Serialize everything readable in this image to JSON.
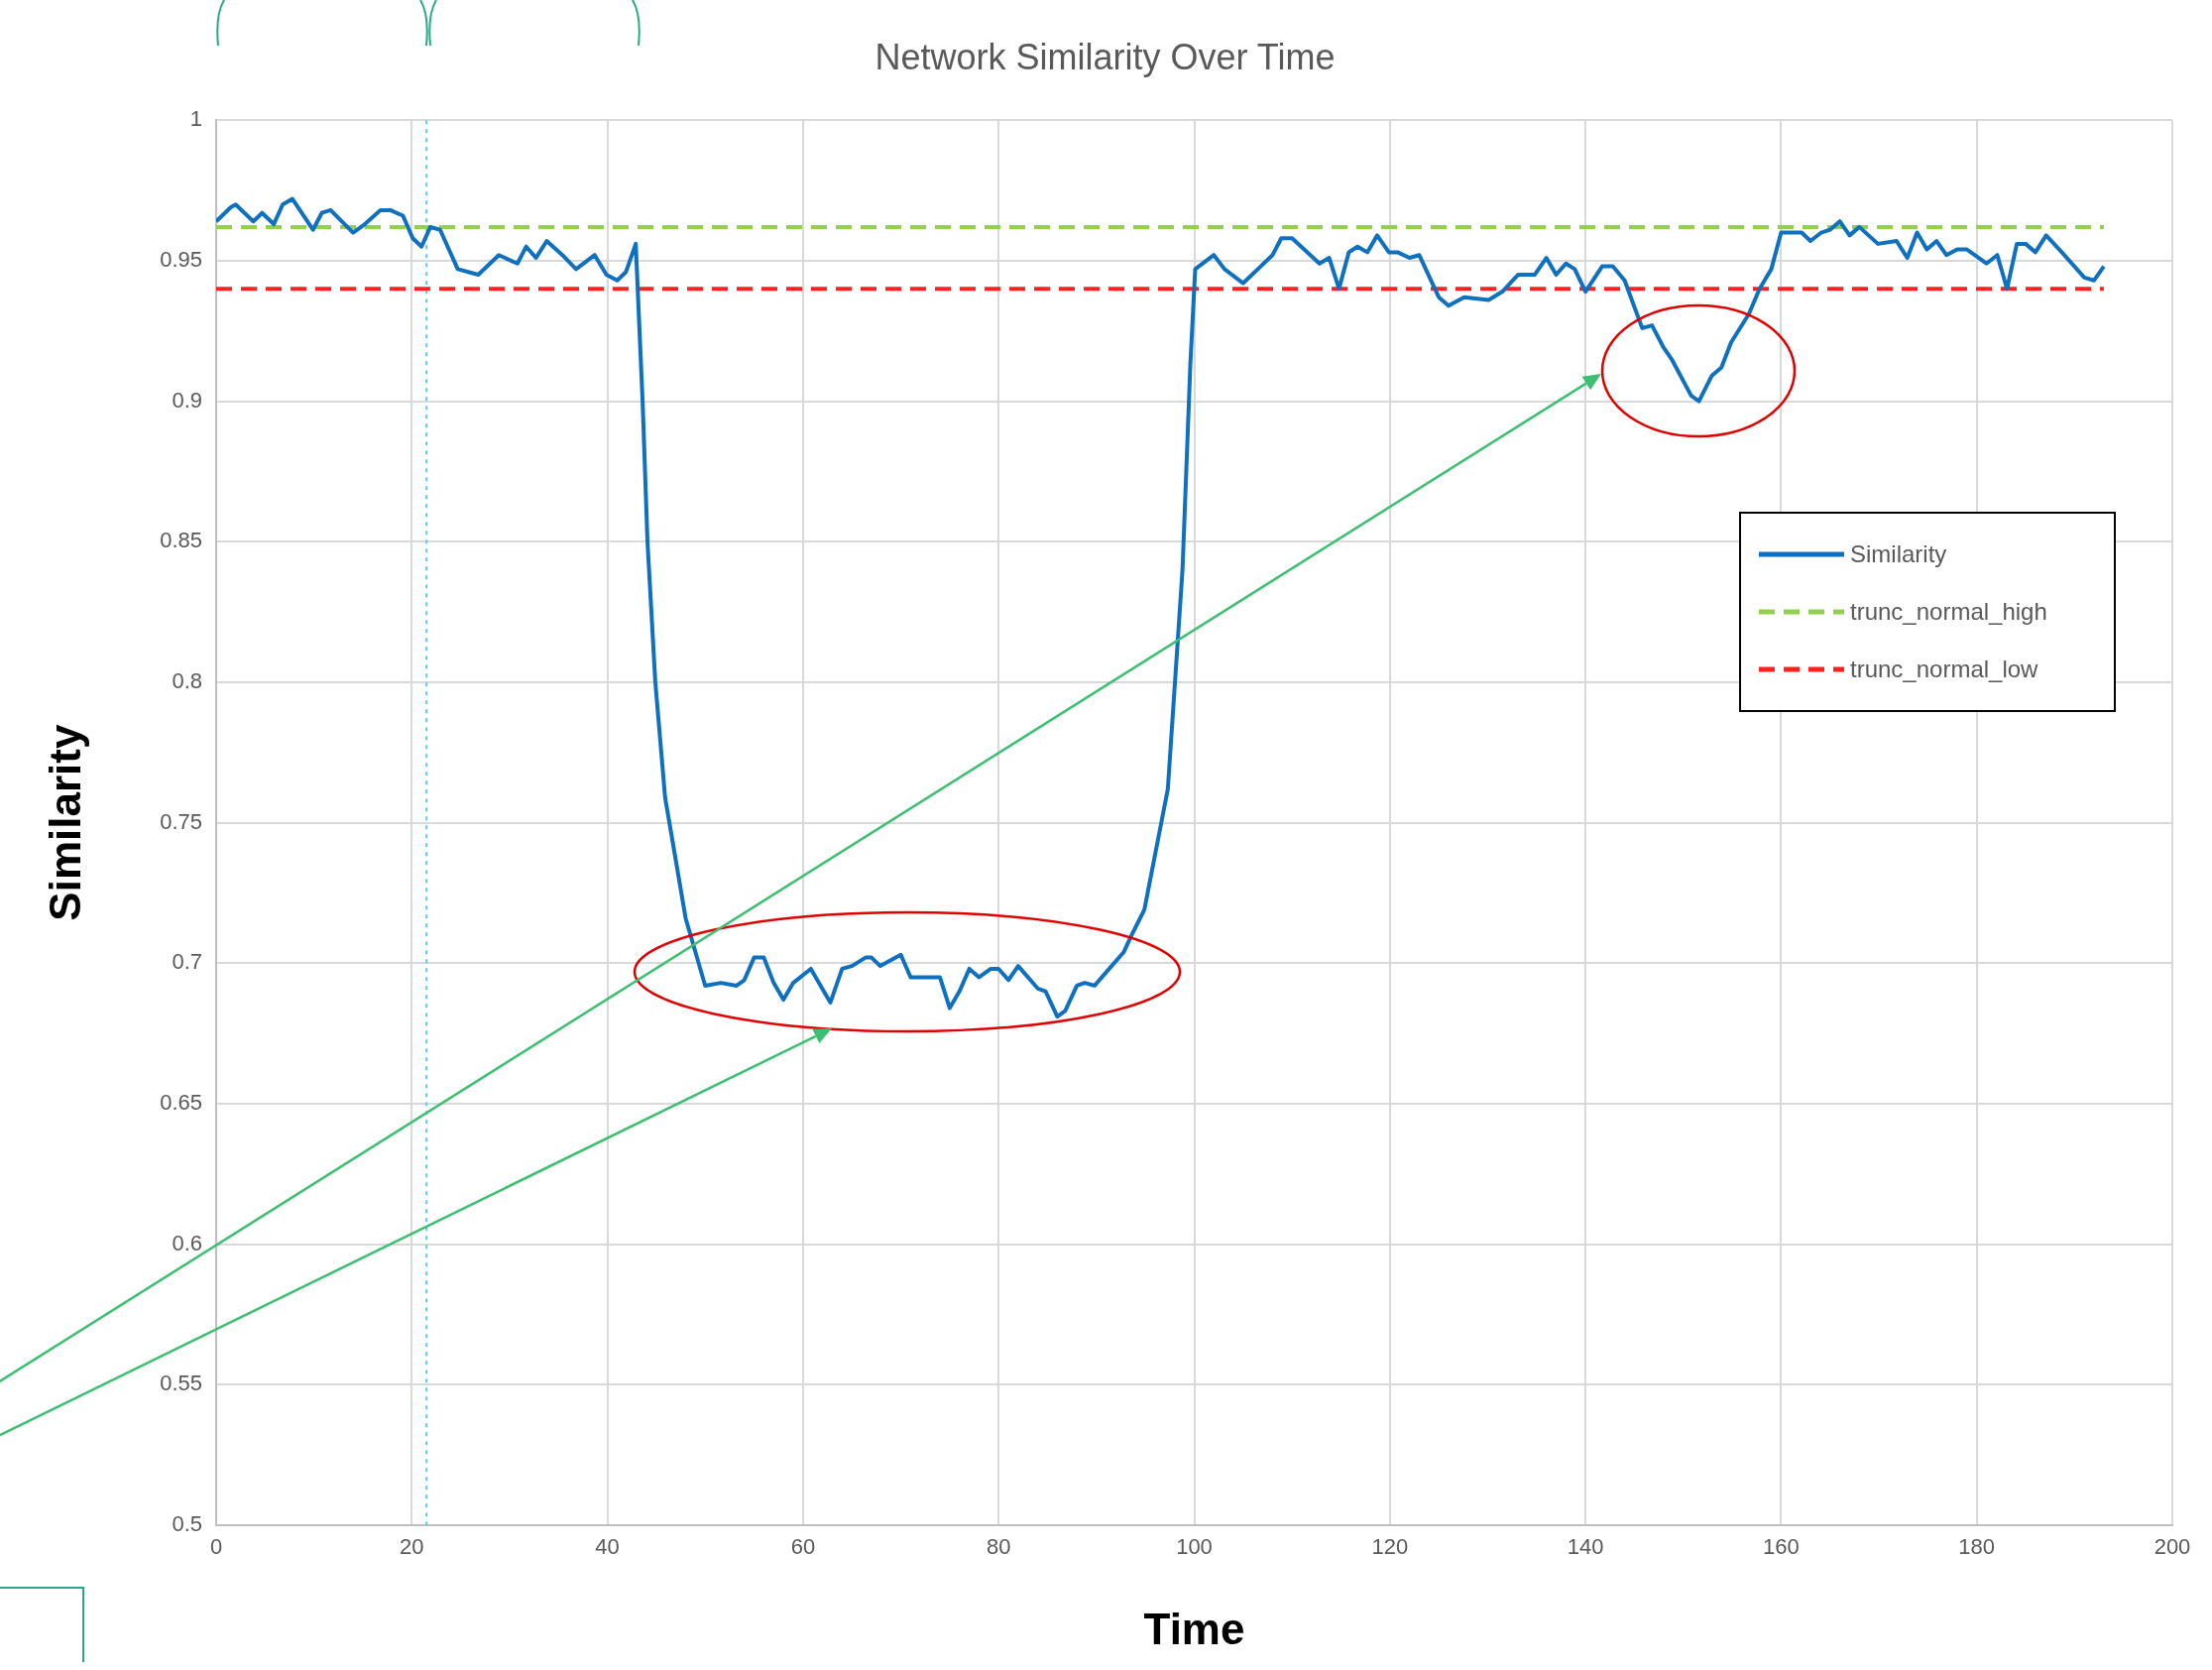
{
  "chart_data": {
    "type": "line",
    "title": "Network Similarity Over Time",
    "xlabel": "Time",
    "ylabel": "Similarity",
    "xlim": [
      0,
      200
    ],
    "xticks": [
      0,
      20,
      40,
      60,
      80,
      100,
      120,
      140,
      160,
      180,
      200
    ],
    "ylim": [
      0.5,
      1
    ],
    "yticks": [
      0.5,
      0.55,
      0.6,
      0.65,
      0.7,
      0.75,
      0.8,
      0.85,
      0.9,
      0.95,
      1
    ],
    "grid": true,
    "legend": "right",
    "marker": "none",
    "ref_lines": [
      {
        "axis": "x",
        "value": 21.5,
        "color": "#5bd3e6",
        "line_style": "dotted"
      }
    ],
    "series": [
      {
        "name": "Similarity",
        "color": "#1070c0",
        "line_style": "solid",
        "x": [
          0,
          1.5,
          2,
          3.8,
          4.7,
          5.9,
          6.8,
          7.8,
          9.9,
          10.8,
          11.7,
          14,
          15.2,
          16.8,
          17.8,
          19.1,
          20.1,
          21,
          21.9,
          22.9,
          24.7,
          26.8,
          28.9,
          30.8,
          31.7,
          32.7,
          33.8,
          35.4,
          36.8,
          38.7,
          39.9,
          41,
          41.9,
          42.9,
          43.6,
          44.1,
          44.9,
          45.9,
          48,
          50,
          51.6,
          53.2,
          54,
          55,
          56,
          57,
          58,
          59,
          60.8,
          62.8,
          64,
          65,
          66.4,
          67,
          67.9,
          70,
          71,
          74,
          75,
          76,
          77,
          78,
          79.2,
          80,
          81,
          82,
          84,
          84.8,
          86,
          86.8,
          88,
          88.8,
          89.8,
          90.8,
          92.8,
          93.6,
          94.9,
          97.3,
          98.8,
          99.6,
          100.1,
          102,
          103.1,
          105,
          108,
          108.9,
          110,
          112.8,
          113.8,
          114.8,
          115.8,
          116.7,
          117.7,
          118.7,
          119.9,
          120.8,
          122,
          123,
          125,
          126,
          127.6,
          130.1,
          131.5,
          133.1,
          134.8,
          136,
          137,
          138,
          138.9,
          140,
          141.7,
          142.8,
          144,
          145.8,
          146.8,
          148,
          148.8,
          150.8,
          151.6,
          152.9,
          153.9,
          154.9,
          156.7,
          157.8,
          159,
          160,
          162.1,
          163,
          164.1,
          165,
          166,
          167,
          168,
          169.9,
          171.8,
          172.9,
          173.9,
          174.9,
          175.9,
          176.9,
          178,
          179,
          181,
          182.1,
          183.1,
          184.1,
          185,
          186,
          187.1,
          188.7,
          191,
          192,
          193
        ],
        "values": [
          0.964,
          0.969,
          0.97,
          0.964,
          0.967,
          0.963,
          0.97,
          0.972,
          0.961,
          0.967,
          0.968,
          0.96,
          0.963,
          0.968,
          0.968,
          0.966,
          0.958,
          0.955,
          0.962,
          0.961,
          0.947,
          0.945,
          0.952,
          0.949,
          0.955,
          0.951,
          0.957,
          0.952,
          0.947,
          0.952,
          0.945,
          0.943,
          0.946,
          0.956,
          0.9,
          0.85,
          0.8,
          0.759,
          0.716,
          0.692,
          0.693,
          0.692,
          0.694,
          0.702,
          0.702,
          0.693,
          0.687,
          0.693,
          0.698,
          0.686,
          0.698,
          0.699,
          0.702,
          0.702,
          0.699,
          0.703,
          0.695,
          0.695,
          0.684,
          0.69,
          0.698,
          0.695,
          0.698,
          0.698,
          0.694,
          0.699,
          0.691,
          0.69,
          0.681,
          0.683,
          0.692,
          0.693,
          0.692,
          0.696,
          0.704,
          0.71,
          0.719,
          0.762,
          0.84,
          0.913,
          0.947,
          0.952,
          0.947,
          0.942,
          0.952,
          0.958,
          0.958,
          0.949,
          0.951,
          0.94,
          0.953,
          0.955,
          0.953,
          0.959,
          0.953,
          0.953,
          0.951,
          0.952,
          0.937,
          0.934,
          0.937,
          0.936,
          0.939,
          0.945,
          0.945,
          0.951,
          0.945,
          0.949,
          0.947,
          0.939,
          0.948,
          0.948,
          0.943,
          0.926,
          0.927,
          0.919,
          0.915,
          0.902,
          0.9,
          0.909,
          0.912,
          0.921,
          0.931,
          0.94,
          0.947,
          0.96,
          0.96,
          0.957,
          0.96,
          0.961,
          0.964,
          0.959,
          0.962,
          0.956,
          0.957,
          0.951,
          0.96,
          0.954,
          0.957,
          0.952,
          0.954,
          0.954,
          0.949,
          0.952,
          0.94,
          0.956,
          0.956,
          0.953,
          0.959,
          0.953,
          0.944,
          0.943,
          0.948
        ]
      },
      {
        "name": "trunc_normal_high",
        "color": "#92d050",
        "line_style": "dashed",
        "x": [
          0,
          193
        ],
        "values": [
          0.962,
          0.962
        ]
      },
      {
        "name": "trunc_normal_low",
        "color": "#ff2020",
        "line_style": "dashed",
        "x": [
          0,
          193
        ],
        "values": [
          0.94,
          0.94
        ]
      }
    ]
  }
}
